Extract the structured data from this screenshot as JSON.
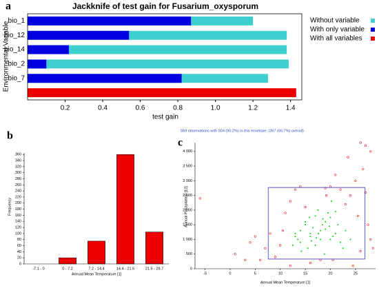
{
  "chart_data": [
    {
      "type": "hbar",
      "panel": "a",
      "title": "Jackknife of test gain for Fusarium_oxysporum",
      "x_label": "test gain",
      "y_label": "Environmental Variable",
      "categories": [
        "bio_1",
        "bio_12",
        "bio_14",
        "bio_2",
        "bio_7",
        null
      ],
      "series": [
        {
          "name": "Without variable",
          "color": "#3fcfcf",
          "values": [
            1.2,
            1.38,
            1.38,
            1.39,
            1.28,
            null
          ]
        },
        {
          "name": "With only variable",
          "color": "#0000e0",
          "values": [
            0.87,
            0.54,
            0.22,
            0.1,
            0.82,
            null
          ]
        },
        {
          "name": "With all variables",
          "color": "#ee0000",
          "values": [
            null,
            null,
            null,
            null,
            null,
            1.43
          ]
        }
      ],
      "xlim": [
        0,
        1.46
      ],
      "xticks": [
        0.2,
        0.4,
        0.6,
        0.8,
        {
          "value": 1.0,
          "label": "1.0"
        },
        1.2,
        1.4
      ]
    },
    {
      "type": "bar",
      "panel": "b",
      "x_label": "Annual Mean Temperature [1]",
      "y_label": "Frequency",
      "categories": [
        "-7.1 - 0",
        "0 - 7.2",
        "7.2 - 14.4",
        "14.4 - 21.5",
        "21.5 - 28.7"
      ],
      "values": [
        0,
        20,
        75,
        360,
        105
      ],
      "color": "#ee0000",
      "ylim": [
        0,
        365
      ],
      "yticks": [
        0,
        20,
        40,
        60,
        80,
        100,
        120,
        140,
        160,
        180,
        200,
        220,
        240,
        260,
        280,
        300,
        320,
        340,
        360
      ]
    },
    {
      "type": "scatter",
      "panel": "c",
      "subtitle": "559 observations with 504 (90.2%) in this envelope; (367 (65.7%) overall)",
      "x_label": "Annual Mean Temperature [1]",
      "y_label": "Annual Precipitation [12]",
      "xlim": [
        -7,
        29
      ],
      "xticks": [
        -5,
        0,
        5,
        10,
        15,
        20,
        25
      ],
      "ylim": [
        0,
        4300
      ],
      "yticks": [
        0,
        500,
        {
          "value": 1000,
          "label": "1 000"
        },
        {
          "value": 1500,
          "label": "1 500"
        },
        {
          "value": 2000,
          "label": "2 000"
        },
        {
          "value": 2500,
          "label": "2 500"
        },
        {
          "value": 3000,
          "label": "3 000"
        },
        {
          "value": 3500,
          "label": "3 500"
        },
        {
          "value": 4000,
          "label": "4 000"
        }
      ],
      "envelope": {
        "color": "#3030d0",
        "x": [
          7.6,
          26.9
        ],
        "y": [
          330,
          2770
        ]
      },
      "series": [
        {
          "color": "#ee2020",
          "x": [
            -6,
            1,
            4,
            6,
            8,
            9,
            10,
            11,
            12,
            13,
            14,
            26,
            27,
            28,
            27.5,
            26.5,
            25,
            24,
            23,
            22,
            21,
            20,
            19,
            18,
            16,
            15,
            10.5,
            7,
            5,
            3,
            25.5,
            26,
            27,
            28.5,
            24.5,
            23.5,
            20.5,
            19.2,
            28,
            12
          ],
          "values": [
            2400,
            500,
            900,
            300,
            1200,
            400,
            800,
            1900,
            2300,
            2700,
            2800,
            4300,
            4200,
            1000,
            1500,
            3400,
            3000,
            2500,
            2200,
            2700,
            3200,
            2800,
            2750,
            300,
            200,
            2100,
            1300,
            700,
            1100,
            300,
            1800,
            600,
            2600,
            700,
            100,
            3800,
            300,
            2500,
            4000,
            100
          ]
        },
        {
          "color": "#10d010",
          "x": [
            13,
            14,
            15,
            16,
            17,
            18,
            19,
            20,
            21,
            22,
            15.5,
            16.5,
            17.5,
            18.5,
            19.5,
            20.5,
            14.2,
            13.5,
            12.5,
            21.5,
            23,
            22.5,
            18,
            17,
            16,
            19,
            20,
            15,
            14,
            18.8,
            17.2,
            16.2,
            19.8,
            21,
            15.8,
            13,
            24,
            20.2,
            17.6,
            18.4
          ],
          "values": [
            1200,
            900,
            1500,
            1100,
            1800,
            1300,
            1600,
            1000,
            1200,
            900,
            700,
            1400,
            2000,
            1700,
            1900,
            1100,
            600,
            1000,
            800,
            1500,
            1300,
            700,
            1000,
            800,
            1200,
            1350,
            1750,
            1600,
            1300,
            500,
            1050,
            950,
            1450,
            1950,
            1750,
            1100,
            1000,
            2300,
            1200,
            1500
          ]
        }
      ]
    }
  ]
}
